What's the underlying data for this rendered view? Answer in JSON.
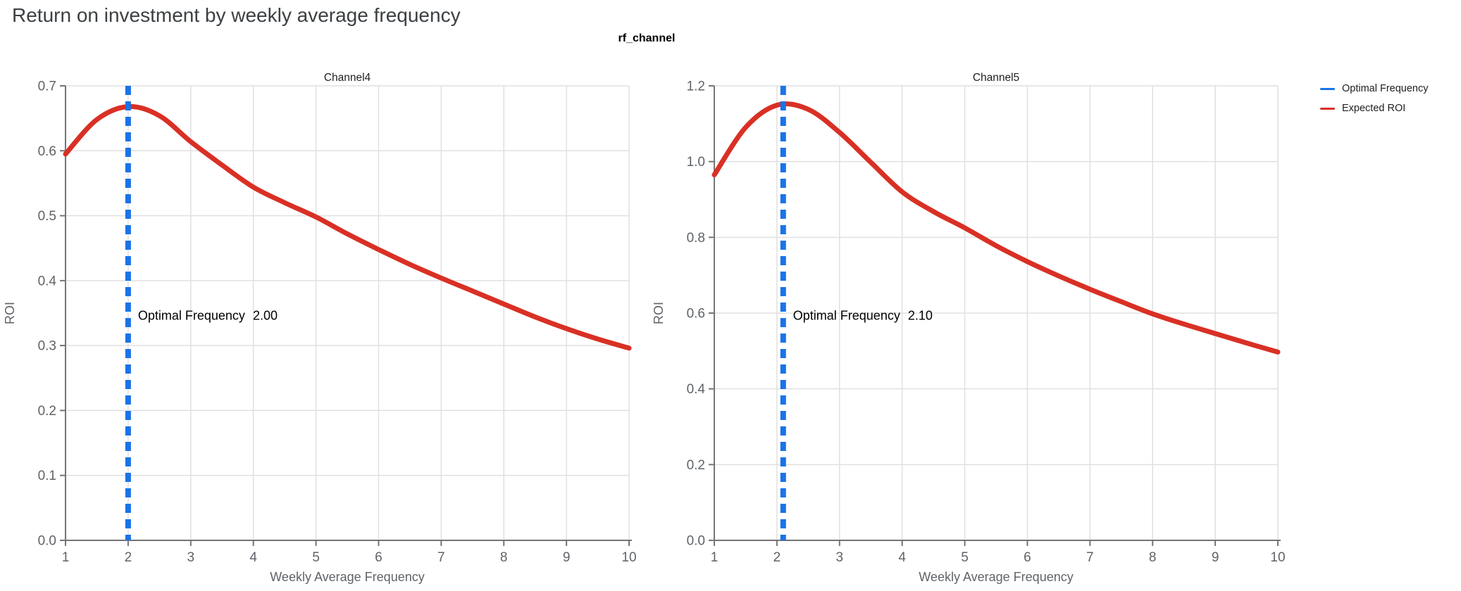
{
  "page": {
    "title": "Return on investment by weekly average frequency",
    "suptitle": "rf_channel"
  },
  "legend": {
    "position": "top-right",
    "items": [
      {
        "label": "Optimal Frequency",
        "color": "#1a73e8"
      },
      {
        "label": "Expected ROI",
        "color": "#d93025"
      }
    ]
  },
  "colors": {
    "optimal_frequency_line": "#1a73e8",
    "expected_roi_curve": "#d93025",
    "gridline": "#e0e0e0",
    "axis_line": "#757575",
    "tick_label": "#5f6368",
    "axis_title": "#5f6368",
    "subplot_title": "#202124",
    "annotation_text": "#000000",
    "page_title": "#3c4043"
  },
  "chart_data": [
    {
      "type": "line",
      "title": "Channel4",
      "xlabel": "Weekly Average Frequency",
      "ylabel": "ROI",
      "xlim": [
        1,
        10
      ],
      "ylim": [
        0,
        0.7
      ],
      "xticks": [
        "1",
        "2",
        "3",
        "4",
        "5",
        "6",
        "7",
        "8",
        "9",
        "10"
      ],
      "yticks": [
        "0.0",
        "0.1",
        "0.2",
        "0.3",
        "0.4",
        "0.5",
        "0.6",
        "0.7"
      ],
      "grid": true,
      "optimal_frequency": 2.0,
      "annotation": {
        "label": "Optimal Frequency",
        "value": "2.00"
      },
      "series": [
        {
          "name": "Expected ROI",
          "x": [
            1,
            1.5,
            2,
            2.5,
            3,
            3.5,
            4,
            4.5,
            5,
            5.5,
            6,
            6.5,
            7,
            7.5,
            8,
            8.5,
            9,
            9.5,
            10
          ],
          "y": [
            0.595,
            0.648,
            0.668,
            0.654,
            0.614,
            0.578,
            0.544,
            0.52,
            0.498,
            0.472,
            0.448,
            0.425,
            0.404,
            0.384,
            0.364,
            0.344,
            0.326,
            0.31,
            0.296
          ]
        }
      ]
    },
    {
      "type": "line",
      "title": "Channel5",
      "xlabel": "Weekly Average Frequency",
      "ylabel": "ROI",
      "xlim": [
        1,
        10
      ],
      "ylim": [
        0,
        1.2
      ],
      "xticks": [
        "1",
        "2",
        "3",
        "4",
        "5",
        "6",
        "7",
        "8",
        "9",
        "10"
      ],
      "yticks": [
        "0.0",
        "0.2",
        "0.4",
        "0.6",
        "0.8",
        "1.0",
        "1.2"
      ],
      "grid": true,
      "optimal_frequency": 2.1,
      "annotation": {
        "label": "Optimal Frequency",
        "value": "2.10"
      },
      "series": [
        {
          "name": "Expected ROI",
          "x": [
            1,
            1.5,
            2,
            2.5,
            3,
            3.5,
            4,
            4.5,
            5,
            5.5,
            6,
            6.5,
            7,
            7.5,
            8,
            8.5,
            9,
            9.5,
            10
          ],
          "y": [
            0.965,
            1.09,
            1.149,
            1.138,
            1.077,
            0.998,
            0.92,
            0.868,
            0.825,
            0.778,
            0.736,
            0.698,
            0.663,
            0.63,
            0.598,
            0.571,
            0.546,
            0.521,
            0.497
          ]
        }
      ]
    }
  ]
}
